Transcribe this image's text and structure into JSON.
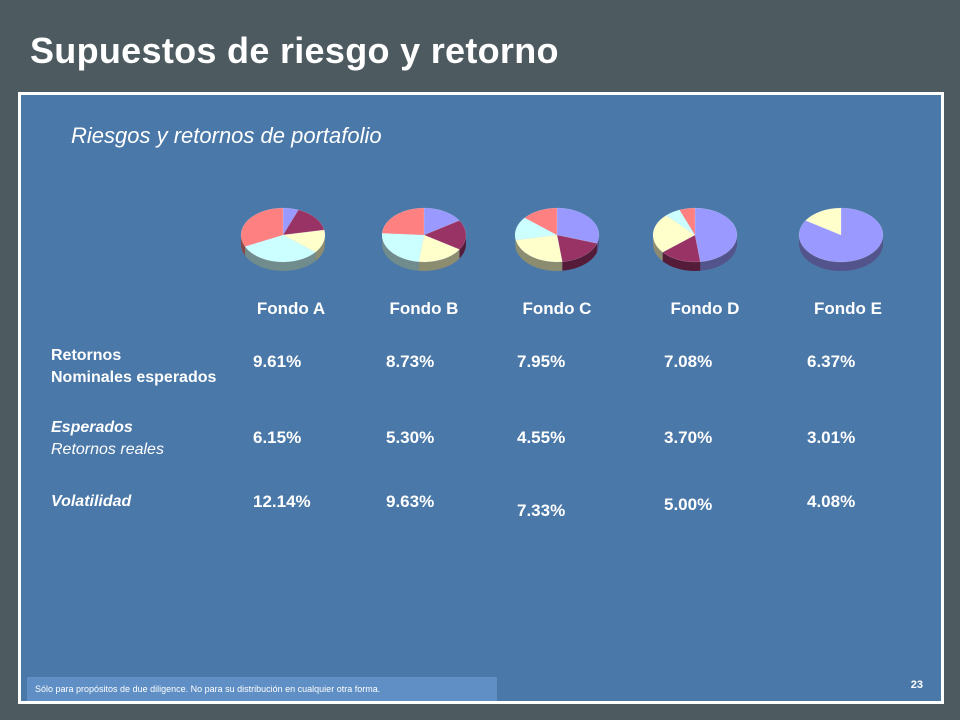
{
  "title": "Supuestos de riesgo y retorno",
  "subtitle": "Riesgos y retornos de portafolio",
  "rows": {
    "nominal": {
      "line1": "Retornos",
      "line2": "Nominales esperados"
    },
    "real": {
      "line1": "Esperados",
      "line2": "Retornos reales"
    },
    "volatility": {
      "line1": "Volatilidad"
    }
  },
  "funds": [
    {
      "name": "Fondo A",
      "nominal": "9.61%",
      "real": "6.15%",
      "volatility": "12.14%"
    },
    {
      "name": "Fondo B",
      "nominal": "8.73%",
      "real": "5.30%",
      "volatility": "9.63%"
    },
    {
      "name": "Fondo C",
      "nominal": "7.95%",
      "real": "4.55%",
      "volatility": "7.33%"
    },
    {
      "name": "Fondo D",
      "nominal": "7.08%",
      "real": "3.70%",
      "volatility": "5.00%"
    },
    {
      "name": "Fondo E",
      "nominal": "6.37%",
      "real": "3.01%",
      "volatility": "4.08%"
    }
  ],
  "chart_data": {
    "type": "pie",
    "slice_colors": [
      "#9999ff",
      "#993366",
      "#ffffcc",
      "#ccffff",
      "#ff8080"
    ],
    "pies": [
      {
        "category": "Fondo A",
        "values": [
          6,
          16,
          14,
          32,
          32
        ]
      },
      {
        "category": "Fondo B",
        "values": [
          16,
          18,
          18,
          24,
          24
        ]
      },
      {
        "category": "Fondo C",
        "values": [
          30,
          18,
          24,
          14,
          14
        ]
      },
      {
        "category": "Fondo D",
        "values": [
          48,
          16,
          24,
          6,
          6
        ]
      },
      {
        "category": "Fondo E",
        "values": [
          84,
          0,
          16,
          0,
          0
        ]
      }
    ]
  },
  "footer": {
    "disclaimer": "Sólo para propósitos de due diligence.  No para su distribución en cualquier otra forma.",
    "page": "23"
  }
}
